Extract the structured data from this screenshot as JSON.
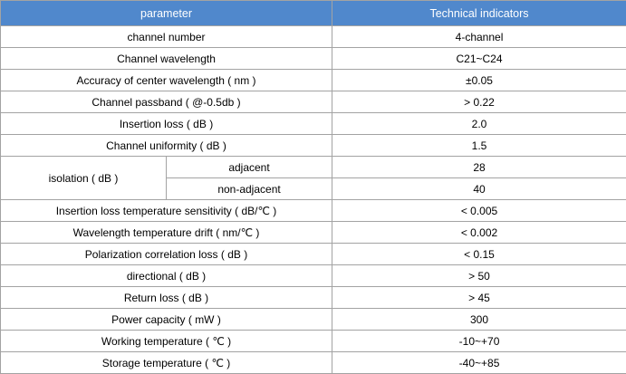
{
  "theme": {
    "header_bg": "#5088CC",
    "header_text": "#FFFFFF",
    "border": "#A3A3A3",
    "cell_bg": "#FFFFFF",
    "cell_text": "#000000"
  },
  "table": {
    "columns": [
      "parameter",
      "Technical indicators"
    ],
    "rows": [
      {
        "parameter": "channel number",
        "value": "4-channel"
      },
      {
        "parameter": "Channel wavelength",
        "value": "C21~C24"
      },
      {
        "parameter": "Accuracy of center wavelength ( nm )",
        "value": "±0.05"
      },
      {
        "parameter": "Channel passband ( @-0.5db )",
        "value": "> 0.22"
      },
      {
        "parameter": "Insertion loss ( dB )",
        "value": "2.0"
      },
      {
        "parameter": "Channel uniformity ( dB )",
        "value": "1.5"
      },
      {
        "parameter": "isolation ( dB )",
        "sub": [
          {
            "label": "adjacent",
            "value": "28"
          },
          {
            "label": "non-adjacent",
            "value": "40"
          }
        ]
      },
      {
        "parameter": "Insertion loss temperature sensitivity ( dB/℃ )",
        "value": "< 0.005"
      },
      {
        "parameter": "Wavelength temperature drift ( nm/℃ )",
        "value": "< 0.002"
      },
      {
        "parameter": "Polarization correlation loss ( dB )",
        "value": "< 0.15"
      },
      {
        "parameter": "directional ( dB )",
        "value": "> 50"
      },
      {
        "parameter": "Return loss ( dB )",
        "value": "> 45"
      },
      {
        "parameter": "Power capacity ( mW )",
        "value": "300"
      },
      {
        "parameter": "Working temperature ( ℃ )",
        "value": "-10~+70"
      },
      {
        "parameter": "Storage temperature ( ℃ )",
        "value": "-40~+85"
      }
    ]
  }
}
